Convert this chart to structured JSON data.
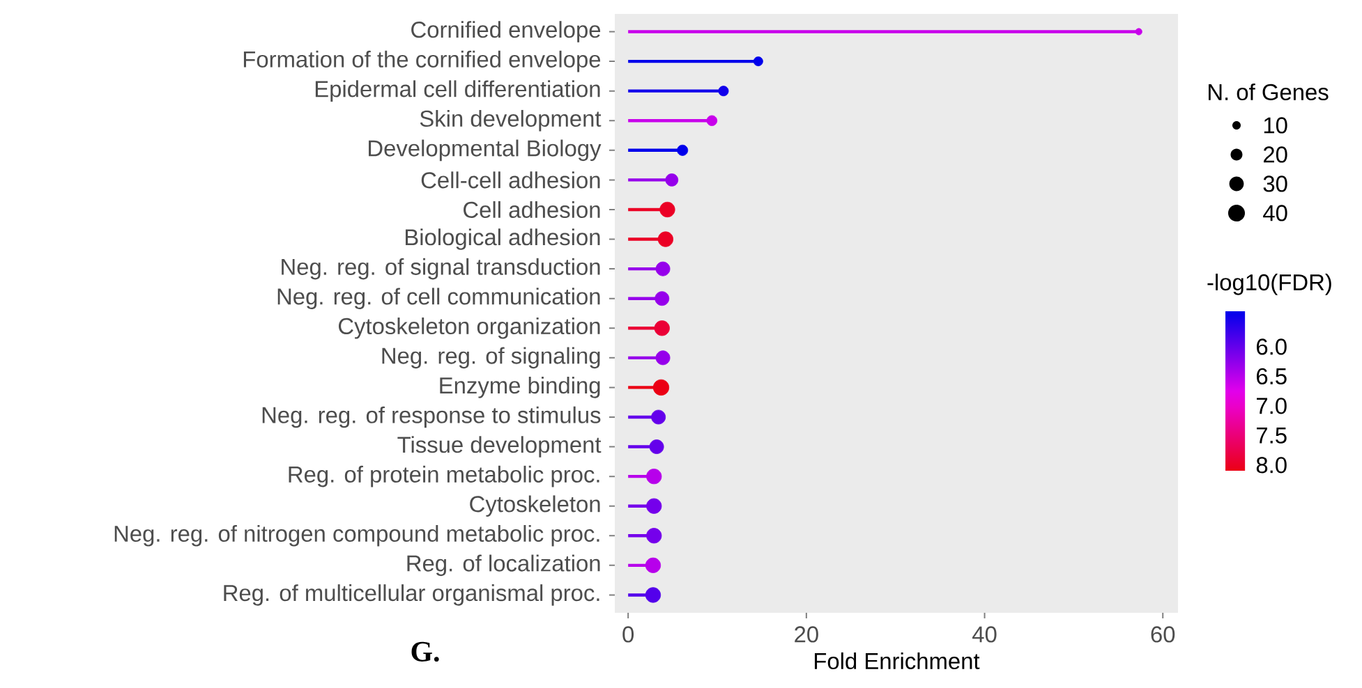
{
  "chart_data": {
    "type": "lollipop",
    "orientation": "horizontal",
    "categories": [
      "Cornified envelope",
      "Formation of the cornified envelope",
      "Epidermal cell differentiation",
      "Skin development",
      "Developmental Biology",
      "Cell-cell adhesion",
      "Cell adhesion",
      "Biological adhesion",
      "Neg. reg. of signal transduction",
      "Neg. reg. of cell communication",
      "Cytoskeleton organization",
      "Neg. reg. of signaling",
      "Enzyme binding",
      "Neg. reg. of response to stimulus",
      "Tissue development",
      "Reg. of protein metabolic proc.",
      "Cytoskeleton",
      "Neg. reg. of nitrogen compound metabolic proc.",
      "Reg. of localization",
      "Reg. of multicellular organismal proc."
    ],
    "values": [
      57.3,
      14.6,
      10.7,
      9.4,
      6.1,
      4.9,
      4.4,
      4.2,
      3.9,
      3.8,
      3.8,
      3.9,
      3.7,
      3.4,
      3.2,
      2.9,
      2.9,
      2.9,
      2.8,
      2.8
    ],
    "sizes": [
      6,
      12,
      14,
      15,
      16,
      22,
      32,
      32,
      28,
      28,
      32,
      28,
      35,
      28,
      28,
      32,
      32,
      32,
      32,
      32
    ],
    "size_legend": [
      10,
      20,
      30,
      40
    ],
    "cvalues": [
      6.6,
      5.4,
      5.5,
      6.6,
      5.4,
      6.3,
      8.0,
      8.0,
      6.3,
      6.3,
      7.9,
      6.3,
      8.1,
      6.0,
      6.0,
      6.5,
      6.1,
      6.1,
      6.5,
      5.9
    ],
    "clim": [
      5.4,
      8.1
    ],
    "cticks": [
      {
        "value": 6,
        "label": "6.0"
      },
      {
        "value": 6.5,
        "label": "6.5"
      },
      {
        "value": 7,
        "label": "7.0"
      },
      {
        "value": 7.5,
        "label": "7.5"
      },
      {
        "value": 8,
        "label": "8.0"
      }
    ],
    "xlim": [
      -1.5,
      61.7
    ],
    "xticks": [
      0,
      20,
      40,
      60
    ],
    "xlabel": "Fold Enrichment",
    "legend_title": "N. of Genes",
    "clabel": "-log10(FDR)",
    "marker": "circle",
    "annotations": [
      "G."
    ]
  }
}
